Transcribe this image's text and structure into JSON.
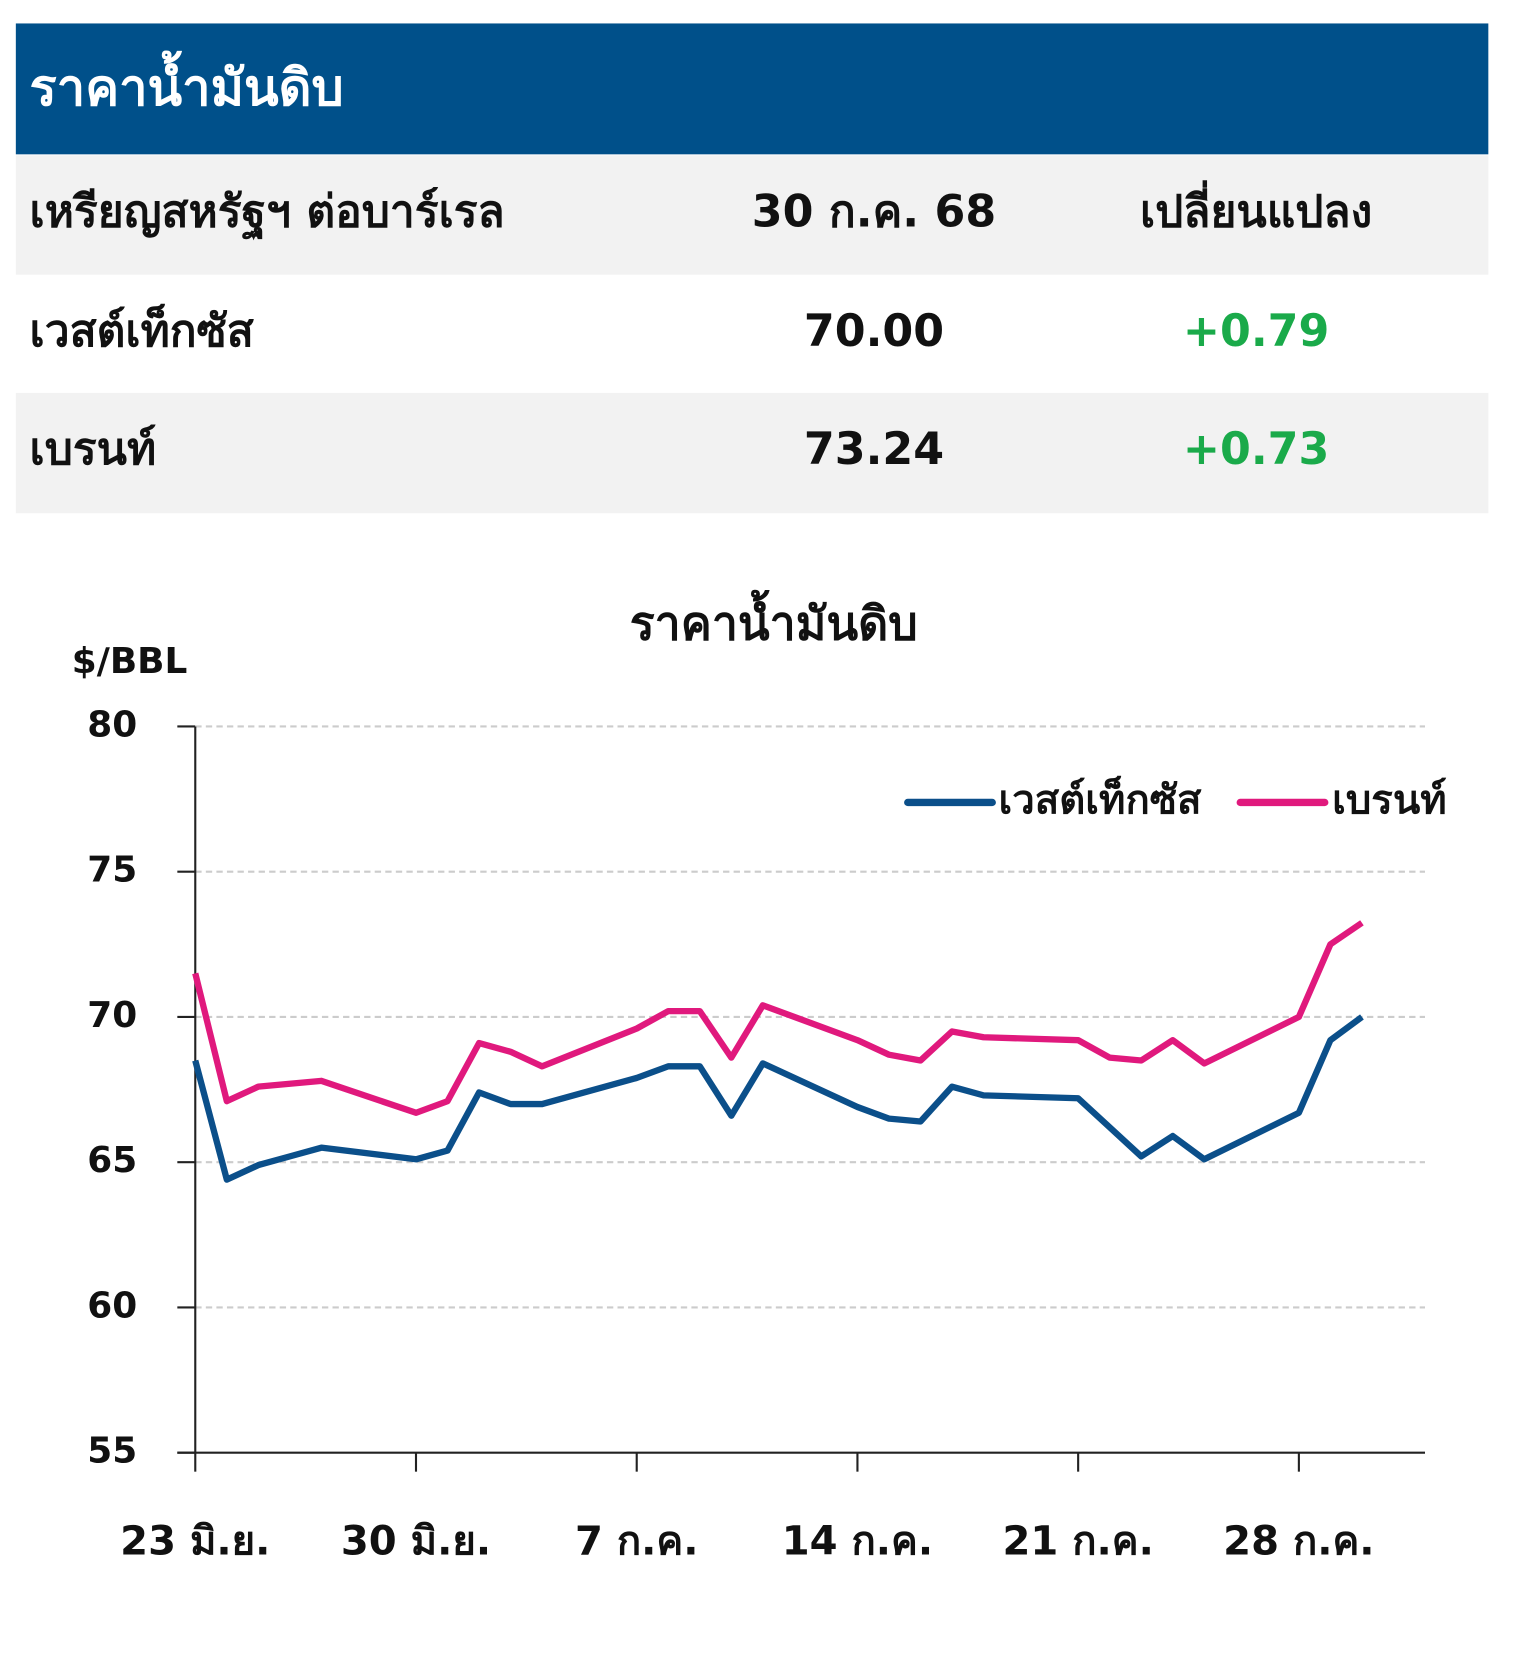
{
  "header": {
    "title": "ราคาน้ำมันดิบ"
  },
  "table": {
    "columns": [
      "เหรียญสหรัฐฯ ต่อบาร์เรล",
      "30 ก.ค. 68",
      "เปลี่ยนแปลง"
    ],
    "rows": [
      [
        "เวสต์เท็กซัส",
        "70.00",
        "+0.79"
      ],
      [
        "เบรนท์",
        "73.24",
        "+0.73"
      ]
    ]
  },
  "chart_data": {
    "type": "line",
    "title": "ราคาน้ำมันดิบ",
    "y_label": "$/BBL",
    "x": [
      "06-23",
      "06-24",
      "06-25",
      "06-26",
      "06-27",
      "06-30",
      "07-01",
      "07-02",
      "07-03",
      "07-04",
      "07-07",
      "07-08",
      "07-09",
      "07-10",
      "07-11",
      "07-14",
      "07-15",
      "07-16",
      "07-17",
      "07-18",
      "07-21",
      "07-22",
      "07-23",
      "07-24",
      "07-25",
      "07-28",
      "07-29",
      "07-30"
    ],
    "series": [
      {
        "name": "เวสต์เท็กซัส",
        "color": "#0b4f8a",
        "values": [
          68.5,
          64.4,
          64.9,
          65.2,
          65.5,
          65.1,
          65.4,
          67.4,
          67.0,
          67.0,
          67.9,
          68.3,
          68.3,
          66.6,
          68.4,
          66.9,
          66.5,
          66.4,
          67.6,
          67.3,
          67.2,
          66.2,
          65.2,
          65.9,
          65.1,
          66.7,
          69.2,
          70.0
        ]
      },
      {
        "name": "เบรนท์",
        "color": "#e0197d",
        "values": [
          71.5,
          67.1,
          67.6,
          67.7,
          67.8,
          66.7,
          67.1,
          69.1,
          68.8,
          68.3,
          69.6,
          70.2,
          70.2,
          68.6,
          70.4,
          69.2,
          68.7,
          68.5,
          69.5,
          69.3,
          69.2,
          68.6,
          68.5,
          69.2,
          68.4,
          70.0,
          72.5,
          73.24
        ]
      }
    ],
    "xlim": [
      "06-23",
      "08-01"
    ],
    "xticks": [
      {
        "value": "06-23",
        "label": "23 มิ.ย."
      },
      {
        "value": "06-30",
        "label": "30 มิ.ย."
      },
      {
        "value": "07-07",
        "label": "7 ก.ค."
      },
      {
        "value": "07-14",
        "label": "14 ก.ค."
      },
      {
        "value": "07-21",
        "label": "21 ก.ค."
      },
      {
        "value": "07-28",
        "label": "28 ก.ค."
      }
    ],
    "ylim": [
      55,
      80
    ],
    "yticks": [
      55,
      60,
      65,
      70,
      75,
      80
    ],
    "grid": true,
    "legend": "top-right"
  }
}
